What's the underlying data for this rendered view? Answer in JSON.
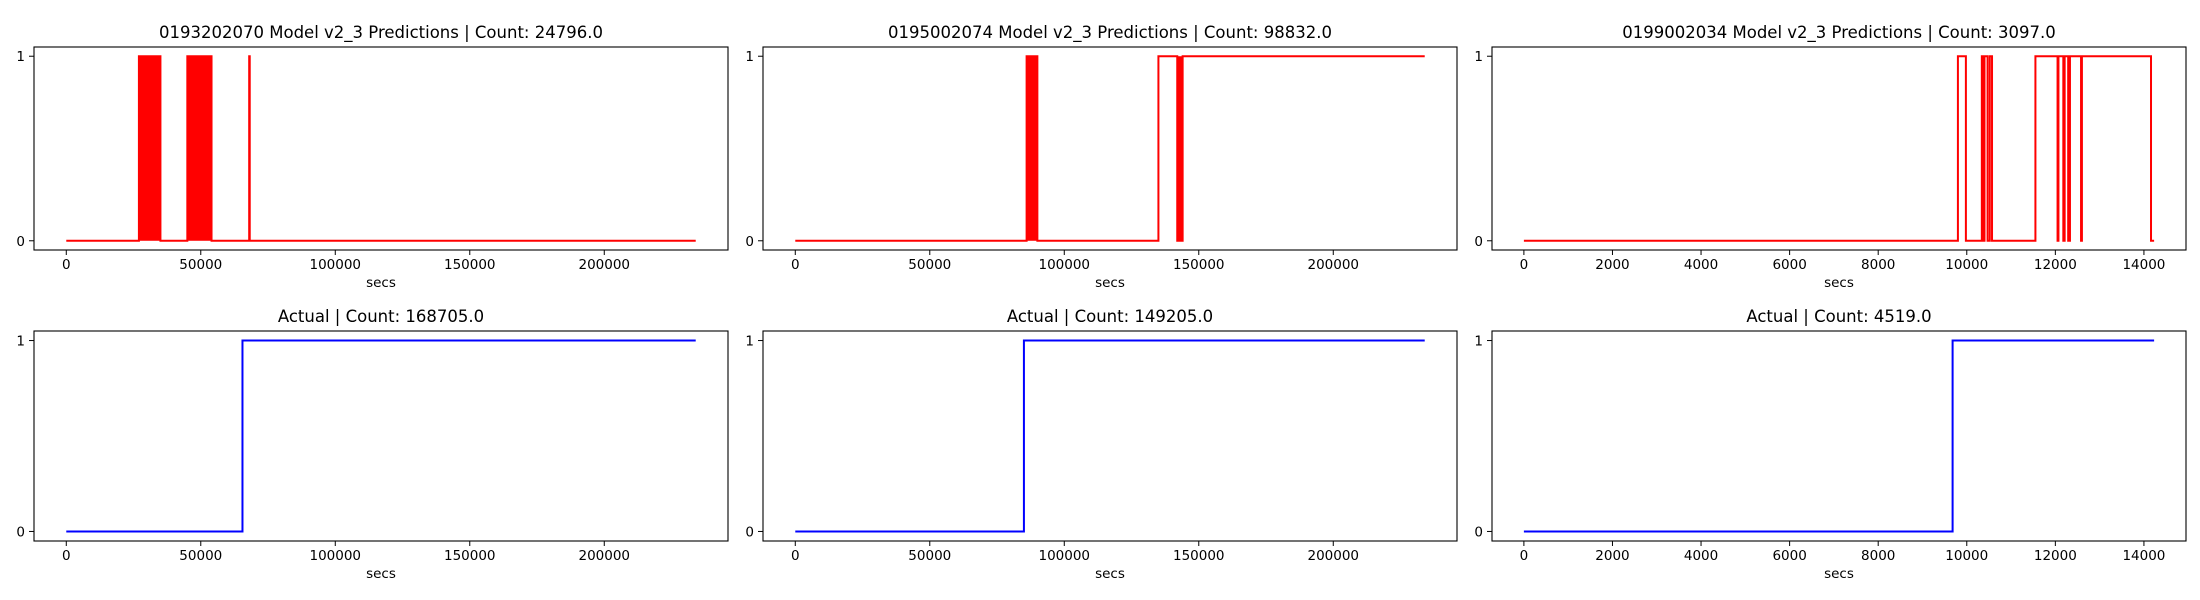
{
  "chart_data": [
    {
      "type": "line",
      "title": "0193202070 Model v2_3 Predictions | Count: 24796.0",
      "xlabel": "secs",
      "ylabel": "",
      "color": "#ff0000",
      "xlim": [
        -12000,
        246000
      ],
      "ylim": [
        -0.05,
        1.05
      ],
      "xticks": [
        0,
        50000,
        100000,
        150000,
        200000
      ],
      "yticks": [
        0,
        1
      ],
      "grid": false,
      "bands": [
        [
          27000,
          35000
        ],
        [
          45000,
          54000
        ]
      ],
      "series": [
        {
          "x": [
            0,
            27000,
            27000,
            35000,
            35000,
            45000,
            45000,
            54000,
            54000,
            68000,
            68000,
            68200,
            68200,
            234000
          ],
          "y": [
            0,
            0,
            1,
            1,
            0,
            0,
            1,
            1,
            0,
            0,
            1,
            1,
            0,
            0
          ]
        }
      ]
    },
    {
      "type": "line",
      "title": "0195002074 Model v2_3 Predictions | Count: 98832.0",
      "xlabel": "secs",
      "ylabel": "",
      "color": "#ff0000",
      "xlim": [
        -12000,
        246000
      ],
      "ylim": [
        -0.05,
        1.05
      ],
      "xticks": [
        0,
        50000,
        100000,
        150000,
        200000
      ],
      "yticks": [
        0,
        1
      ],
      "grid": false,
      "bands": [
        [
          86000,
          90000
        ],
        [
          142000,
          144000
        ]
      ],
      "series": [
        {
          "x": [
            0,
            86000,
            86000,
            90000,
            90000,
            135000,
            135000,
            142000,
            142000,
            144000,
            144000,
            234000
          ],
          "y": [
            0,
            0,
            1,
            1,
            0,
            0,
            1,
            1,
            0,
            0,
            1,
            1
          ]
        }
      ]
    },
    {
      "type": "line",
      "title": "0199002034 Model v2_3 Predictions | Count: 3097.0",
      "xlabel": "secs",
      "ylabel": "",
      "color": "#ff0000",
      "xlim": [
        -720,
        14950
      ],
      "ylim": [
        -0.05,
        1.05
      ],
      "xticks": [
        0,
        2000,
        4000,
        6000,
        8000,
        10000,
        12000,
        14000
      ],
      "yticks": [
        0,
        1
      ],
      "grid": false,
      "bands": [],
      "series": [
        {
          "x": [
            0,
            9800,
            9800,
            9900,
            9900,
            9980,
            9980,
            10010,
            10010,
            10030,
            10030,
            10340,
            10340,
            10380,
            10380,
            10400,
            10400,
            10440,
            10440,
            10470,
            10470,
            10520,
            10520,
            10540,
            10540,
            10570,
            10570,
            11550,
            11550,
            12050,
            12050,
            12070,
            12070,
            12180,
            12180,
            12210,
            12210,
            12290,
            12290,
            12330,
            12330,
            12340,
            12340,
            12370,
            12370,
            12580,
            12580,
            12600,
            12600,
            14160,
            14160,
            14230
          ],
          "y": [
            0,
            0,
            1,
            1,
            1,
            1,
            0,
            0,
            0,
            0,
            0,
            0,
            1,
            1,
            0,
            0,
            1,
            1,
            1,
            1,
            0,
            0,
            1,
            1,
            1,
            1,
            0,
            0,
            1,
            1,
            0,
            0,
            1,
            1,
            0,
            0,
            1,
            1,
            0,
            0,
            1,
            1,
            1,
            1,
            1,
            1,
            0,
            0,
            1,
            1,
            0,
            0
          ]
        }
      ]
    },
    {
      "type": "line",
      "title": "Actual | Count: 168705.0",
      "xlabel": "secs",
      "ylabel": "",
      "color": "#0000ff",
      "xlim": [
        -12000,
        246000
      ],
      "ylim": [
        -0.05,
        1.05
      ],
      "xticks": [
        0,
        50000,
        100000,
        150000,
        200000
      ],
      "yticks": [
        0,
        1
      ],
      "grid": false,
      "bands": [],
      "series": [
        {
          "x": [
            0,
            65500,
            65500,
            234000
          ],
          "y": [
            0,
            0,
            1,
            1
          ]
        }
      ]
    },
    {
      "type": "line",
      "title": "Actual | Count: 149205.0",
      "xlabel": "secs",
      "ylabel": "",
      "color": "#0000ff",
      "xlim": [
        -12000,
        246000
      ],
      "ylim": [
        -0.05,
        1.05
      ],
      "xticks": [
        0,
        50000,
        100000,
        150000,
        200000
      ],
      "yticks": [
        0,
        1
      ],
      "grid": false,
      "bands": [],
      "series": [
        {
          "x": [
            0,
            85000,
            85000,
            234000
          ],
          "y": [
            0,
            0,
            1,
            1
          ]
        }
      ]
    },
    {
      "type": "line",
      "title": "Actual | Count: 4519.0",
      "xlabel": "secs",
      "ylabel": "",
      "color": "#0000ff",
      "xlim": [
        -720,
        14950
      ],
      "ylim": [
        -0.05,
        1.05
      ],
      "xticks": [
        0,
        2000,
        4000,
        6000,
        8000,
        10000,
        12000,
        14000
      ],
      "yticks": [
        0,
        1
      ],
      "grid": false,
      "bands": [],
      "series": [
        {
          "x": [
            0,
            9680,
            9680,
            14230
          ],
          "y": [
            0,
            0,
            1,
            1
          ]
        }
      ]
    }
  ]
}
